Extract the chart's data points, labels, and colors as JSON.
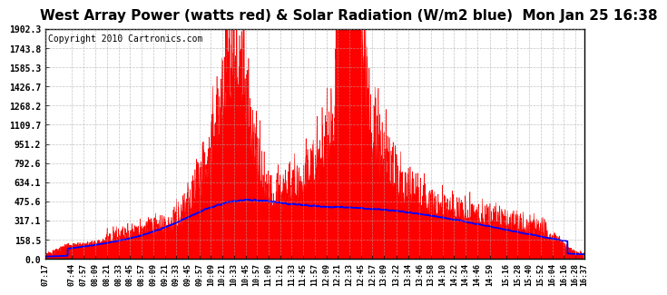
{
  "title": "West Array Power (watts red) & Solar Radiation (W/m2 blue)  Mon Jan 25 16:38",
  "copyright": "Copyright 2010 Cartronics.com",
  "yticks": [
    0.0,
    158.5,
    317.1,
    475.6,
    634.1,
    792.6,
    951.2,
    1109.7,
    1268.2,
    1426.7,
    1585.3,
    1743.8,
    1902.3
  ],
  "ylim": [
    0,
    1902.3
  ],
  "background_color": "#ffffff",
  "grid_color": "#aaaaaa",
  "red_color": "#ff0000",
  "blue_color": "#0000ff",
  "title_fontsize": 11,
  "copyright_fontsize": 7,
  "xtick_labels": [
    "07:17",
    "07:44",
    "07:57",
    "08:09",
    "08:21",
    "08:33",
    "08:45",
    "08:57",
    "09:09",
    "09:21",
    "09:33",
    "09:45",
    "09:57",
    "10:09",
    "10:21",
    "10:33",
    "10:45",
    "10:57",
    "11:09",
    "11:21",
    "11:33",
    "11:45",
    "11:57",
    "12:09",
    "12:21",
    "12:33",
    "12:45",
    "12:57",
    "13:09",
    "13:22",
    "13:34",
    "13:46",
    "13:58",
    "14:10",
    "14:22",
    "14:34",
    "14:46",
    "14:59",
    "15:16",
    "15:28",
    "15:40",
    "15:52",
    "16:04",
    "16:16",
    "16:28",
    "16:37"
  ]
}
